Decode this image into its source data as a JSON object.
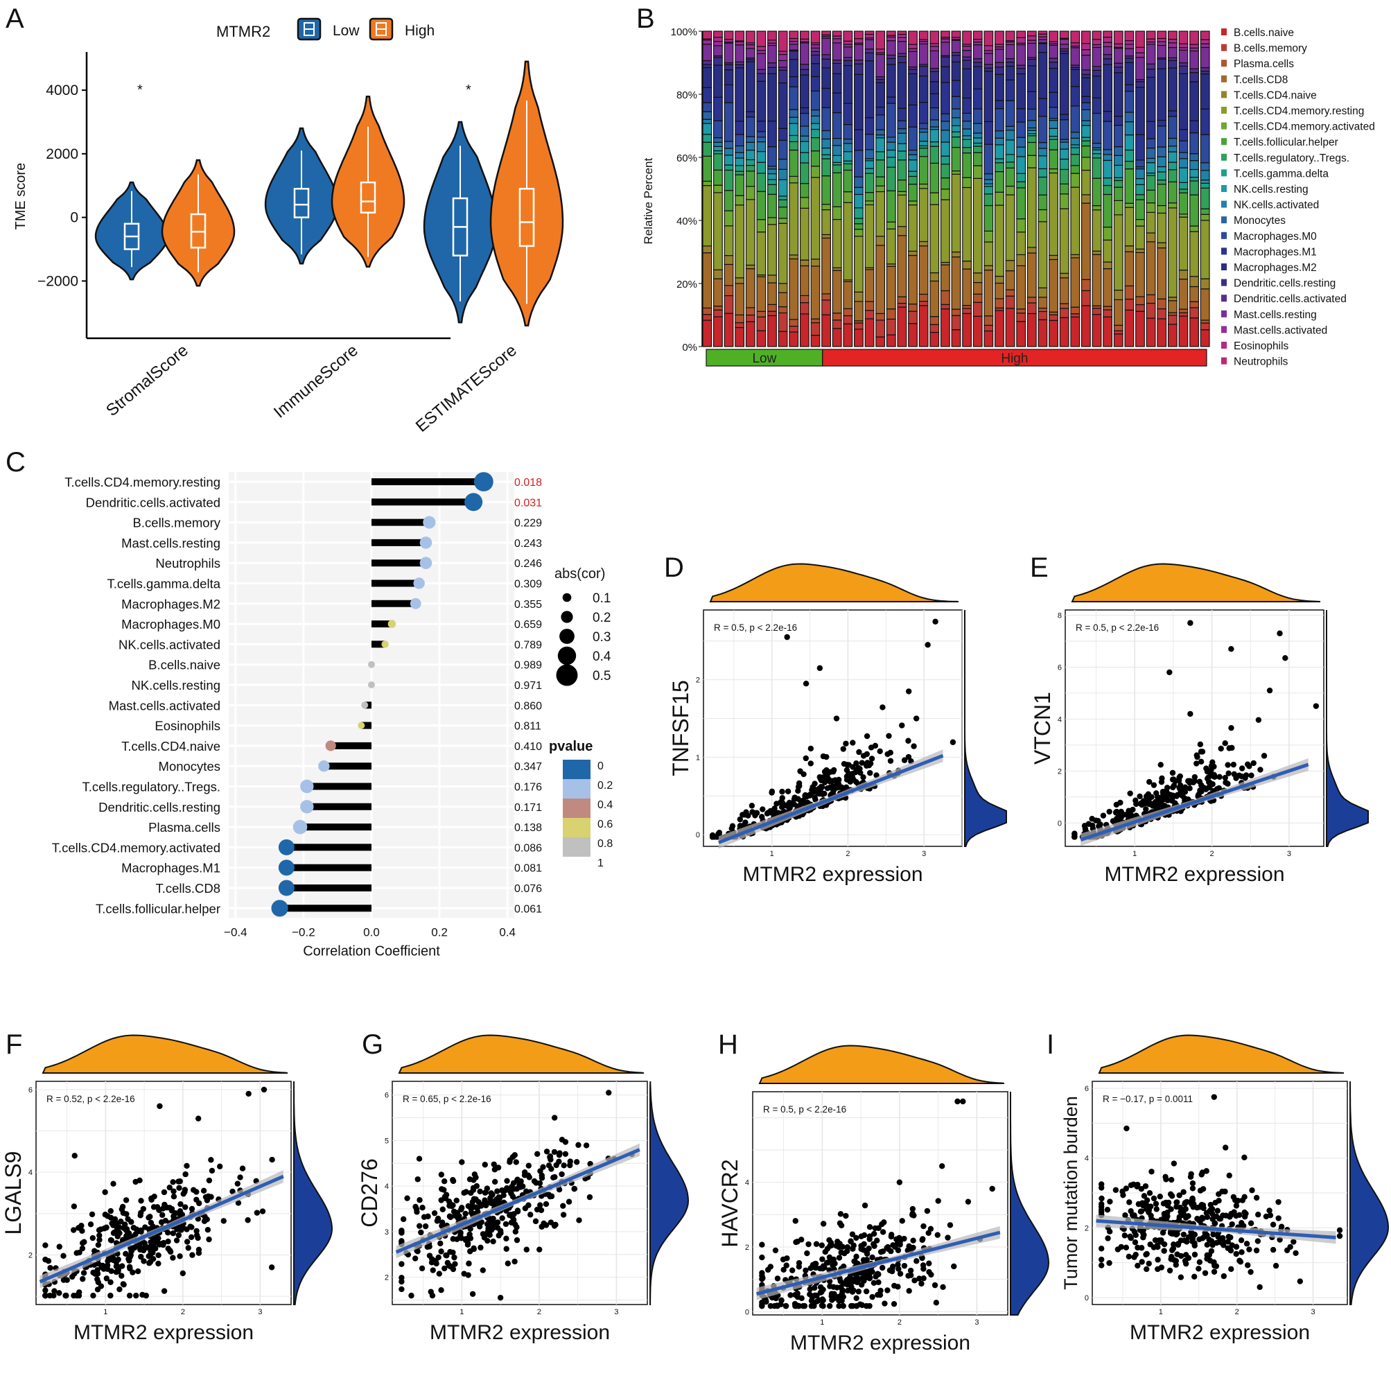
{
  "figure": {
    "panel_letters": [
      "A",
      "B",
      "C",
      "D",
      "E",
      "F",
      "G",
      "H",
      "I"
    ],
    "colors": {
      "low": "#1f67a8",
      "high": "#f07a22",
      "group_low": "#4fb026",
      "group_high": "#e32424",
      "reg_line": "#2f5db5",
      "density_top": "#f39c18",
      "density_side": "#1b3f99",
      "lollipop_bar": "#000000",
      "pval_0": "#1f67a8",
      "pval_02": "#a7c1e6",
      "pval_04": "#c08a80",
      "pval_06": "#d8d270",
      "pval_08": "#c0c0c0"
    }
  },
  "chart_data": [
    {
      "id": "A",
      "type": "violin",
      "title": "",
      "legend_title": "MTMR2",
      "legend": [
        "Low",
        "High"
      ],
      "ylabel": "TME score",
      "yticks": [
        -2000,
        0,
        2000,
        4000
      ],
      "ylim": [
        -3800,
        5200
      ],
      "categories": [
        "StromalScore",
        "ImmuneScore",
        "ESTIMATEScore"
      ],
      "significance": [
        "*",
        "",
        "*"
      ],
      "series": [
        {
          "name": "Low",
          "median": [
            -600,
            400,
            -300
          ],
          "q1": [
            -1000,
            0,
            -1200
          ],
          "q3": [
            -200,
            900,
            600
          ],
          "min": [
            -1950,
            -1450,
            -3300
          ],
          "max": [
            1100,
            2800,
            3000
          ]
        },
        {
          "name": "High",
          "median": [
            -450,
            500,
            -150
          ],
          "q1": [
            -950,
            150,
            -900
          ],
          "q3": [
            100,
            1100,
            900
          ],
          "min": [
            -2150,
            -1550,
            -3400
          ],
          "max": [
            1800,
            3800,
            4900
          ]
        }
      ]
    },
    {
      "id": "B",
      "type": "stacked_bar",
      "ylabel": "Relative Percent",
      "yticks": [
        "0%",
        "20%",
        "40%",
        "60%",
        "80%",
        "100%"
      ],
      "groups": [
        {
          "name": "Low",
          "count": 11
        },
        {
          "name": "High",
          "count": 36
        }
      ],
      "n_samples": 47,
      "cell_types": [
        "B.cells.naive",
        "B.cells.memory",
        "Plasma.cells",
        "T.cells.CD8",
        "T.cells.CD4.naive",
        "T.cells.CD4.memory.resting",
        "T.cells.CD4.memory.activated",
        "T.cells.follicular.helper",
        "T.cells.regulatory..Tregs.",
        "T.cells.gamma.delta",
        "NK.cells.resting",
        "NK.cells.activated",
        "Monocytes",
        "Macrophages.M0",
        "Macrophages.M1",
        "Macrophages.M2",
        "Dendritic.cells.resting",
        "Dendritic.cells.activated",
        "Mast.cells.resting",
        "Mast.cells.activated",
        "Eosinophils",
        "Neutrophils"
      ],
      "cell_colors": [
        "#c8262b",
        "#bf3a35",
        "#b4542c",
        "#a46a2a",
        "#98822d",
        "#8c9a2e",
        "#6fa830",
        "#4aa33a",
        "#31a05a",
        "#1fa08a",
        "#1e9aa8",
        "#2181a8",
        "#2a66a6",
        "#2d4a9e",
        "#2b3390",
        "#2a2f85",
        "#3a2f88",
        "#5a2e8f",
        "#7a2e96",
        "#962e96",
        "#b02b8a",
        "#c0286e"
      ]
    },
    {
      "id": "C",
      "type": "lollipop",
      "xlabel": "Correlation Coefficient",
      "xticks": [
        -0.4,
        -0.2,
        0.0,
        0.2,
        0.4
      ],
      "xlim": [
        -0.42,
        0.42
      ],
      "size_legend_title": "abs(cor)",
      "size_legend": [
        0.1,
        0.2,
        0.3,
        0.4,
        0.5
      ],
      "color_legend_title": "pvalue",
      "color_legend": [
        0,
        0.2,
        0.4,
        0.6,
        0.8,
        1
      ],
      "categories": [
        "T.cells.CD4.memory.resting",
        "Dendritic.cells.activated",
        "B.cells.memory",
        "Mast.cells.resting",
        "Neutrophils",
        "T.cells.gamma.delta",
        "Macrophages.M2",
        "Macrophages.M0",
        "NK.cells.activated",
        "B.cells.naive",
        "NK.cells.resting",
        "Mast.cells.activated",
        "Eosinophils",
        "T.cells.CD4.naive",
        "Monocytes",
        "T.cells.regulatory..Tregs.",
        "Dendritic.cells.resting",
        "Plasma.cells",
        "T.cells.CD4.memory.activated",
        "Macrophages.M1",
        "T.cells.CD8",
        "T.cells.follicular.helper"
      ],
      "values": [
        0.33,
        0.3,
        0.17,
        0.16,
        0.16,
        0.14,
        0.13,
        0.06,
        0.04,
        0.0,
        0.0,
        -0.02,
        -0.03,
        -0.12,
        -0.14,
        -0.19,
        -0.19,
        -0.21,
        -0.25,
        -0.25,
        -0.25,
        -0.27
      ],
      "pvalues": [
        "0.018",
        "0.031",
        "0.229",
        "0.243",
        "0.246",
        "0.309",
        "0.355",
        "0.659",
        "0.789",
        "0.989",
        "0.971",
        "0.860",
        "0.811",
        "0.410",
        "0.347",
        "0.176",
        "0.171",
        "0.138",
        "0.086",
        "0.081",
        "0.076",
        "0.061"
      ],
      "highlight_pvalues": [
        "0.018",
        "0.031"
      ]
    },
    {
      "id": "D",
      "type": "scatter",
      "xlabel": "MTMR2 expression",
      "ylabel": "TNFSF15",
      "annotation": "R = 0.5, p < 2.2e-16",
      "xticks": [
        1,
        2,
        3
      ],
      "yticks": [
        0,
        1,
        2
      ],
      "xlim": [
        0.1,
        3.5
      ],
      "ylim": [
        -0.15,
        2.9
      ],
      "regression": {
        "x0": 0.3,
        "y0": -0.1,
        "x1": 3.25,
        "y1": 1.02
      },
      "n_points": 360,
      "highlight_points": [
        [
          1.2,
          2.55
        ],
        [
          3.15,
          2.75
        ],
        [
          1.45,
          1.95
        ],
        [
          1.63,
          2.15
        ],
        [
          2.8,
          1.85
        ],
        [
          3.05,
          2.45
        ],
        [
          2.9,
          1.5
        ],
        [
          1.85,
          1.5
        ]
      ]
    },
    {
      "id": "E",
      "type": "scatter",
      "xlabel": "MTMR2 expression",
      "ylabel": "VTCN1",
      "annotation": "R = 0.5, p < 2.2e-16",
      "xticks": [
        1,
        2,
        3
      ],
      "yticks": [
        0,
        2,
        4,
        6,
        8
      ],
      "xlim": [
        0.1,
        3.45
      ],
      "ylim": [
        -0.9,
        8.2
      ],
      "regression": {
        "x0": 0.3,
        "y0": -0.65,
        "x1": 3.25,
        "y1": 2.25
      },
      "n_points": 340,
      "highlight_points": [
        [
          1.72,
          7.7
        ],
        [
          2.25,
          6.7
        ],
        [
          2.88,
          7.3
        ],
        [
          2.95,
          6.35
        ],
        [
          3.35,
          4.5
        ],
        [
          2.75,
          5.1
        ],
        [
          1.45,
          5.8
        ],
        [
          1.72,
          4.2
        ]
      ]
    },
    {
      "id": "F",
      "type": "scatter",
      "xlabel": "MTMR2 expression",
      "ylabel": "LGALS9",
      "annotation": "R = 0.52, p < 2.2e-16",
      "xticks": [
        1,
        2,
        3
      ],
      "yticks": [
        2,
        4,
        6
      ],
      "xlim": [
        0.1,
        3.4
      ],
      "ylim": [
        0.8,
        6.2
      ],
      "regression": {
        "x0": 0.15,
        "y0": 1.35,
        "x1": 3.3,
        "y1": 3.9
      },
      "n_points": 380,
      "highlight_points": [
        [
          3.05,
          6.0
        ],
        [
          2.85,
          5.9
        ],
        [
          0.6,
          4.4
        ],
        [
          1.7,
          5.6
        ],
        [
          2.2,
          5.3
        ],
        [
          3.15,
          1.7
        ]
      ]
    },
    {
      "id": "G",
      "type": "scatter",
      "xlabel": "MTMR2 expression",
      "ylabel": "CD276",
      "annotation": "R = 0.65, p < 2.2e-16",
      "xticks": [
        1,
        2,
        3
      ],
      "yticks": [
        2,
        3,
        4,
        5,
        6
      ],
      "xlim": [
        0.1,
        3.4
      ],
      "ylim": [
        1.4,
        6.3
      ],
      "regression": {
        "x0": 0.15,
        "y0": 2.55,
        "x1": 3.3,
        "y1": 4.8
      },
      "n_points": 380,
      "highlight_points": [
        [
          2.9,
          6.05
        ],
        [
          2.2,
          5.5
        ],
        [
          0.45,
          4.6
        ],
        [
          1.5,
          1.55
        ],
        [
          3.2,
          4.7
        ]
      ]
    },
    {
      "id": "H",
      "type": "scatter",
      "xlabel": "MTMR2 expression",
      "ylabel": "HAVCR2",
      "annotation": "R = 0.5, p < 2.2e-16",
      "xticks": [
        1,
        2,
        3
      ],
      "yticks": [
        0,
        2,
        4
      ],
      "xlim": [
        0.1,
        3.4
      ],
      "ylim": [
        -0.1,
        6.8
      ],
      "regression": {
        "x0": 0.15,
        "y0": 0.55,
        "x1": 3.3,
        "y1": 2.45
      },
      "n_points": 380,
      "highlight_points": [
        [
          2.75,
          6.5
        ],
        [
          2.82,
          6.5
        ],
        [
          2.55,
          4.5
        ],
        [
          2.0,
          4.0
        ],
        [
          3.2,
          3.8
        ]
      ]
    },
    {
      "id": "I",
      "type": "scatter",
      "xlabel": "MTMR2 expression",
      "ylabel": "Tumor mutation burden",
      "annotation": "R = −0.17, p = 0.0011",
      "xticks": [
        1,
        2,
        3
      ],
      "yticks": [
        0,
        2,
        4,
        6
      ],
      "xlim": [
        0.1,
        3.45
      ],
      "ylim": [
        -0.2,
        6.2
      ],
      "regression": {
        "x0": 0.15,
        "y0": 2.2,
        "x1": 3.3,
        "y1": 1.72
      },
      "n_points": 380,
      "highlight_points": [
        [
          1.7,
          5.75
        ],
        [
          0.55,
          4.85
        ],
        [
          1.85,
          4.3
        ],
        [
          1.9,
          3.5
        ],
        [
          1.2,
          1.05
        ],
        [
          2.3,
          0.3
        ]
      ]
    }
  ]
}
